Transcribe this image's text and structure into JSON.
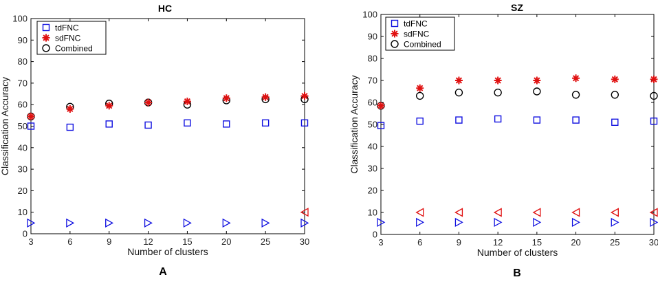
{
  "colors": {
    "tdFNC": "#1010e0",
    "sdFNC": "#e01010",
    "Combined": "#000000",
    "axis": "#000000"
  },
  "chart_data": [
    {
      "type": "scatter",
      "title": "HC",
      "panel_label": "A",
      "xlabel": "Number of clusters",
      "ylabel": "Classification Accuracy",
      "categories": [
        "3",
        "6",
        "9",
        "12",
        "15",
        "20",
        "25",
        "30"
      ],
      "ylim": [
        0,
        100
      ],
      "yticks": [
        "0",
        "10",
        "20",
        "30",
        "40",
        "50",
        "60",
        "70",
        "80",
        "90",
        "100"
      ],
      "legend_placement": "top-left",
      "series": [
        {
          "name": "tdFNC",
          "marker": "square",
          "color": "#1010e0",
          "values": [
            50,
            49.5,
            51,
            50.5,
            51.5,
            51,
            51.5,
            51.5
          ]
        },
        {
          "name": "sdFNC",
          "marker": "star",
          "color": "#e01010",
          "values": [
            54.5,
            58,
            59.5,
            61,
            61.5,
            63,
            63.5,
            64
          ]
        },
        {
          "name": "Combined",
          "marker": "circle",
          "color": "#000000",
          "values": [
            54.5,
            59,
            60.5,
            61,
            60,
            62,
            62.5,
            62.5
          ]
        },
        {
          "marker": "triangle-right",
          "color": "#1010e0",
          "values": [
            5,
            5,
            5,
            5,
            5,
            5,
            5,
            5
          ]
        },
        {
          "marker": "triangle-left",
          "color": "#e01010",
          "values": [
            null,
            null,
            null,
            null,
            null,
            null,
            null,
            10
          ]
        }
      ]
    },
    {
      "type": "scatter",
      "title": "SZ",
      "panel_label": "B",
      "xlabel": "Number of clusters",
      "ylabel": "Classification Accuracy",
      "categories": [
        "3",
        "6",
        "9",
        "12",
        "15",
        "20",
        "25",
        "30"
      ],
      "ylim": [
        0,
        100
      ],
      "yticks": [
        "0",
        "10",
        "20",
        "30",
        "40",
        "50",
        "60",
        "70",
        "80",
        "90",
        "100"
      ],
      "legend_placement": "top-left",
      "series": [
        {
          "name": "tdFNC",
          "marker": "square",
          "color": "#1010e0",
          "values": [
            49.5,
            51.5,
            52,
            52.5,
            52,
            52,
            51,
            51.5
          ]
        },
        {
          "name": "sdFNC",
          "marker": "star",
          "color": "#e01010",
          "values": [
            58.5,
            66.5,
            70,
            70,
            70,
            71,
            70.5,
            70.5
          ]
        },
        {
          "name": "Combined",
          "marker": "circle",
          "color": "#000000",
          "values": [
            58.5,
            63,
            64.5,
            64.5,
            65,
            63.5,
            63.5,
            63
          ]
        },
        {
          "marker": "triangle-right",
          "color": "#1010e0",
          "values": [
            5.5,
            5.5,
            5.5,
            5.5,
            5.5,
            5.5,
            5.5,
            5.5
          ]
        },
        {
          "marker": "triangle-left",
          "color": "#e01010",
          "values": [
            null,
            10,
            10,
            10,
            10,
            10,
            10,
            10
          ]
        }
      ]
    }
  ]
}
